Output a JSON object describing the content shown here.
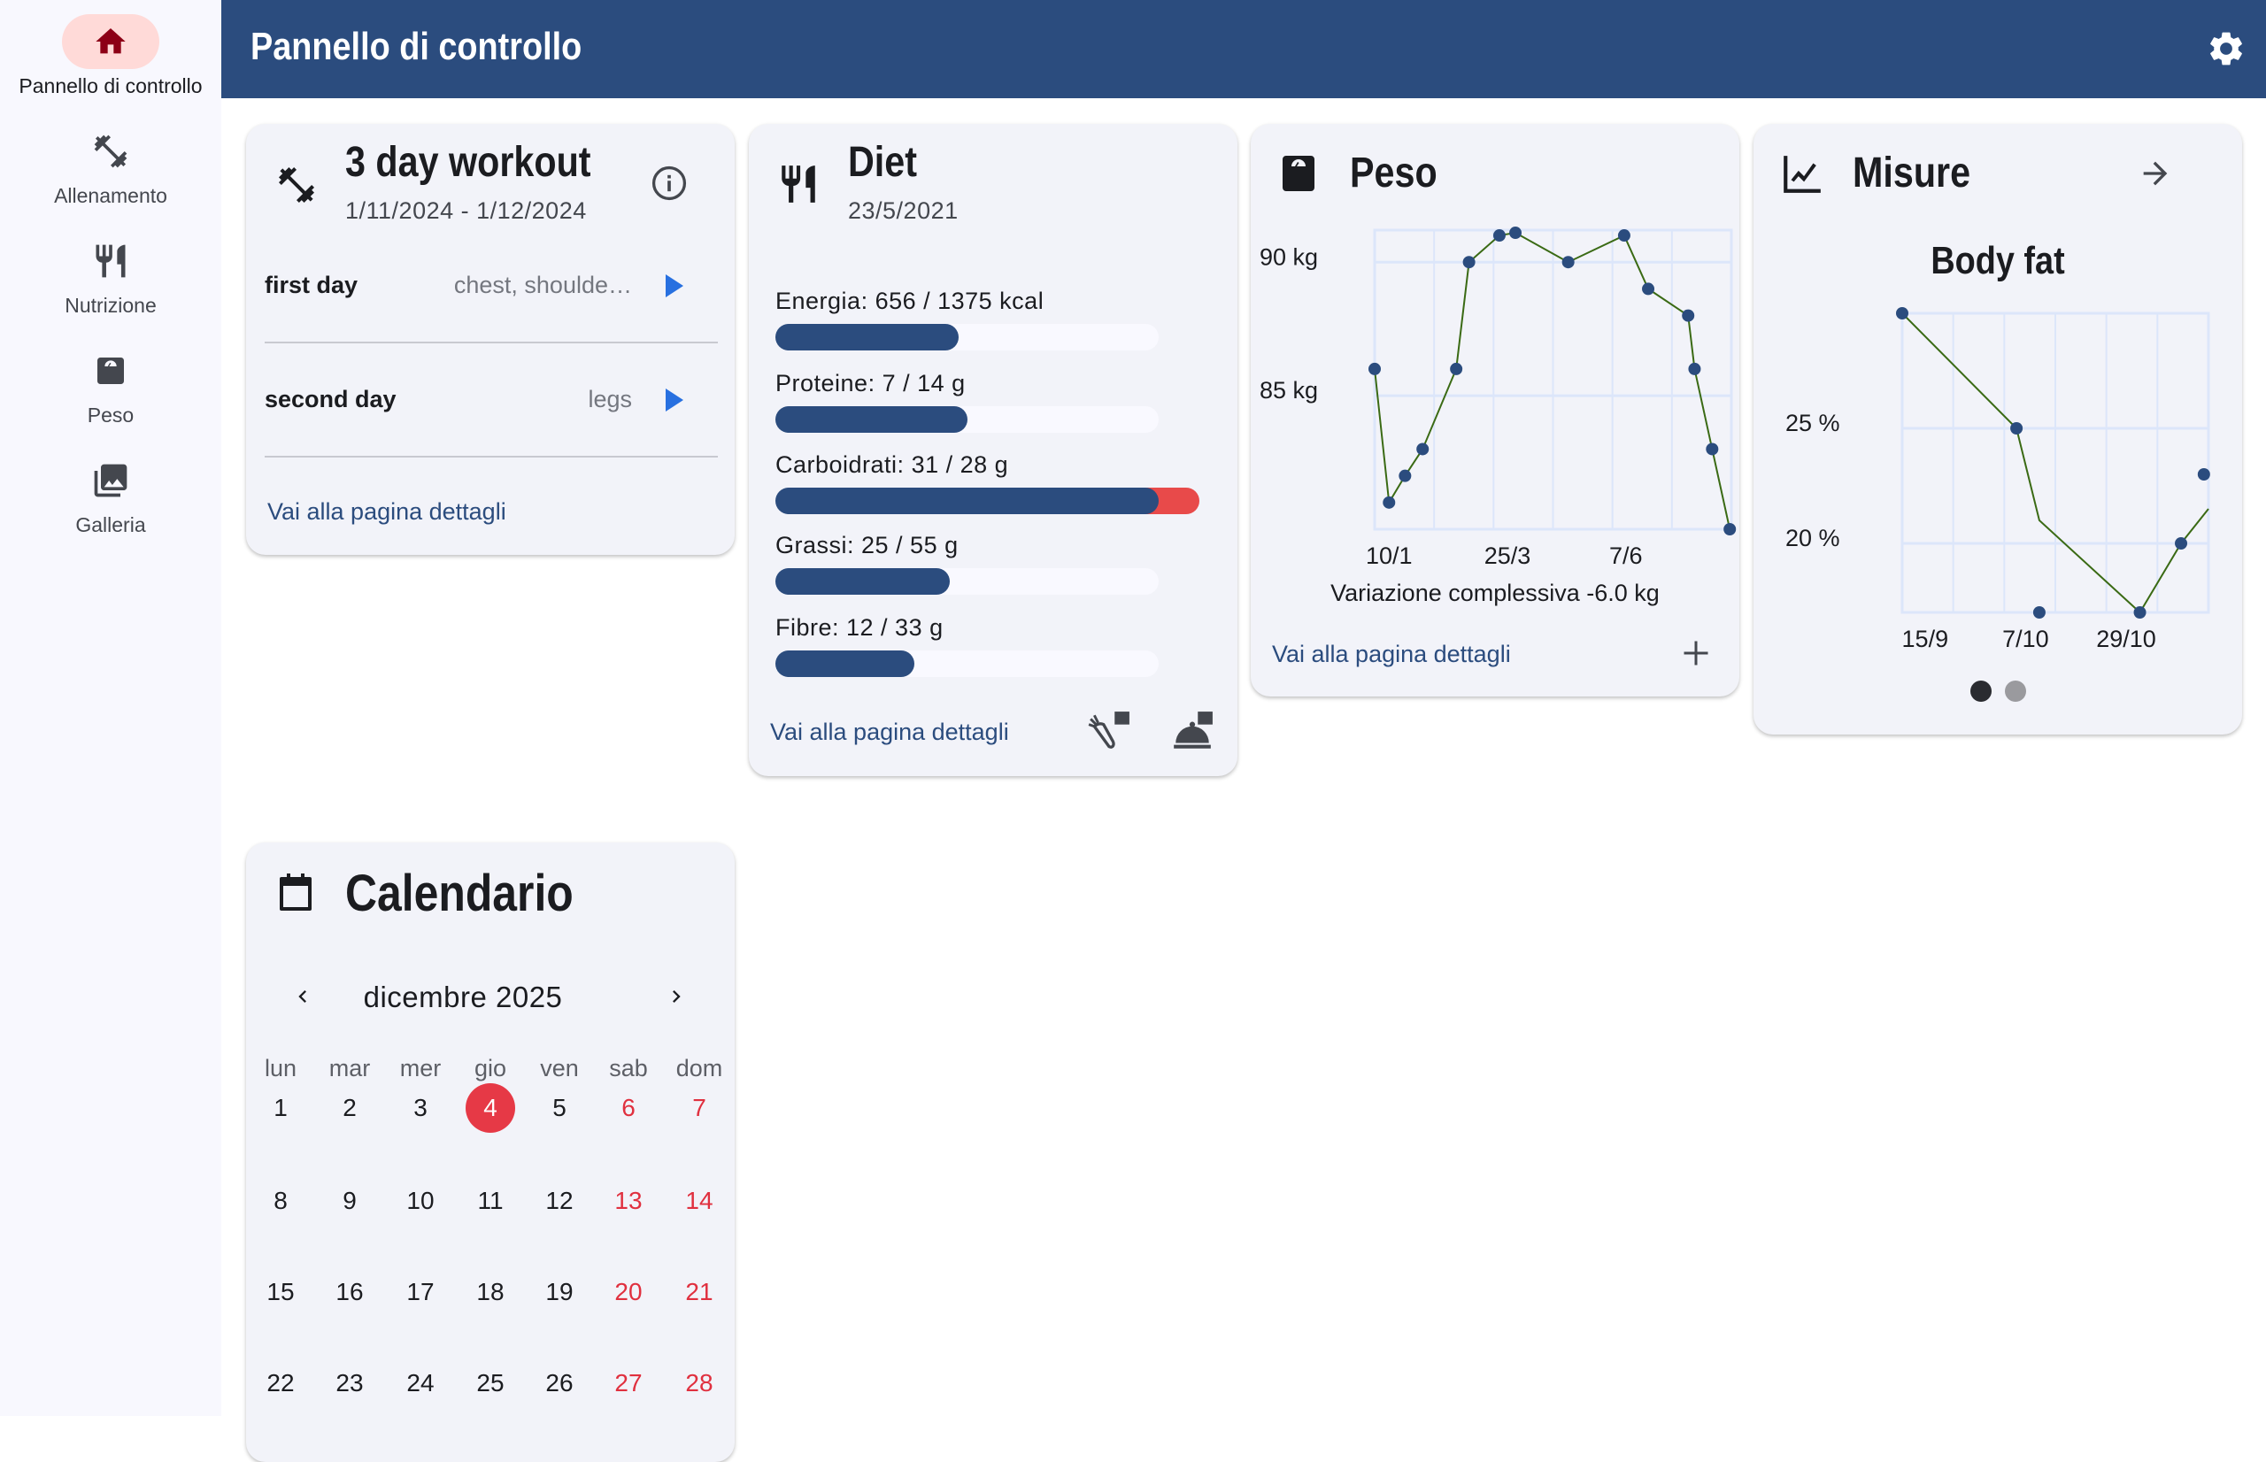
{
  "sidebar": {
    "items": [
      {
        "label": "Pannello di controllo",
        "icon": "home-icon",
        "active": true
      },
      {
        "label": "Allenamento",
        "icon": "dumbbell-icon"
      },
      {
        "label": "Nutrizione",
        "icon": "restaurant-icon"
      },
      {
        "label": "Peso",
        "icon": "scale-icon"
      },
      {
        "label": "Galleria",
        "icon": "photo-library-icon"
      }
    ]
  },
  "header": {
    "title": "Pannello di controllo",
    "settings_icon": "gear-icon"
  },
  "colors": {
    "primary": "#2b4c7e",
    "accent_red": "#e63946",
    "chart_line": "#3a6a14",
    "grid": "#dce6fa"
  },
  "workout": {
    "title": "3 day workout",
    "dates": "1/11/2024 - 1/12/2024",
    "days": [
      {
        "name": "first day",
        "muscles": "chest, shoulde…"
      },
      {
        "name": "second day",
        "muscles": "legs"
      }
    ],
    "link": "Vai alla pagina dettagli"
  },
  "diet": {
    "title": "Diet",
    "date": "23/5/2021",
    "nutrients": [
      {
        "label": "Energia: 656 / 1375 kcal",
        "value": 656,
        "target": 1375
      },
      {
        "label": "Proteine: 7 / 14 g",
        "value": 7,
        "target": 14
      },
      {
        "label": "Carboidrati: 31 / 28 g",
        "value": 31,
        "target": 28
      },
      {
        "label": "Grassi: 25 / 55 g",
        "value": 25,
        "target": 55
      },
      {
        "label": "Fibre: 12 / 33 g",
        "value": 12,
        "target": 33
      }
    ],
    "link": "Vai alla pagina dettagli"
  },
  "weight": {
    "title": "Peso",
    "summary": "Variazione complessiva -6.0 kg",
    "link": "Vai alla pagina dettagli"
  },
  "measures": {
    "title": "Misure",
    "page_count": 2,
    "current_page": 0
  },
  "calendar": {
    "title": "Calendario",
    "month": "dicembre 2025",
    "weekdays": [
      "lun",
      "mar",
      "mer",
      "gio",
      "ven",
      "sab",
      "dom"
    ],
    "weeks": [
      [
        1,
        2,
        3,
        4,
        5,
        6,
        7
      ],
      [
        8,
        9,
        10,
        11,
        12,
        13,
        14
      ],
      [
        15,
        16,
        17,
        18,
        19,
        20,
        21
      ],
      [
        22,
        23,
        24,
        25,
        26,
        27,
        28
      ]
    ],
    "today": 4
  },
  "chart_data": [
    {
      "type": "line",
      "title": "Peso",
      "ylabel": "kg",
      "yticks": [
        {
          "v": 85,
          "label": "85 kg"
        },
        {
          "v": 90,
          "label": "90 kg"
        }
      ],
      "xticks": [
        {
          "v": 10,
          "label": "10/1"
        },
        {
          "v": 84,
          "label": "25/3"
        },
        {
          "v": 158,
          "label": "7/6"
        }
      ],
      "xlim": [
        1,
        224
      ],
      "ylim": [
        80,
        91.2
      ],
      "grid": true,
      "x": [
        1,
        10,
        20,
        31,
        52,
        60,
        79,
        89,
        122,
        157,
        172,
        197,
        201,
        212,
        223
      ],
      "y": [
        86,
        81,
        82,
        83,
        86,
        90,
        91,
        91.1,
        90,
        91,
        89,
        88,
        86,
        83,
        80
      ]
    },
    {
      "type": "line",
      "title": "Body fat",
      "ylabel": "%",
      "yticks": [
        {
          "v": 20,
          "label": "20 %"
        },
        {
          "v": 25,
          "label": "25 %"
        }
      ],
      "xticks": [
        {
          "v": 258,
          "label": "15/9"
        },
        {
          "v": 280,
          "label": "7/10"
        },
        {
          "v": 302,
          "label": "29/10"
        }
      ],
      "xlim": [
        253,
        320
      ],
      "ylim": [
        17,
        30
      ],
      "grid": true,
      "x": [
        253,
        278,
        283,
        305,
        314,
        319
      ],
      "y": [
        30,
        25,
        17,
        17,
        20,
        23
      ],
      "line_x": [
        253,
        278,
        283,
        305,
        314,
        320
      ],
      "line_y": [
        30,
        25,
        21,
        17,
        20,
        21.5
      ]
    }
  ]
}
